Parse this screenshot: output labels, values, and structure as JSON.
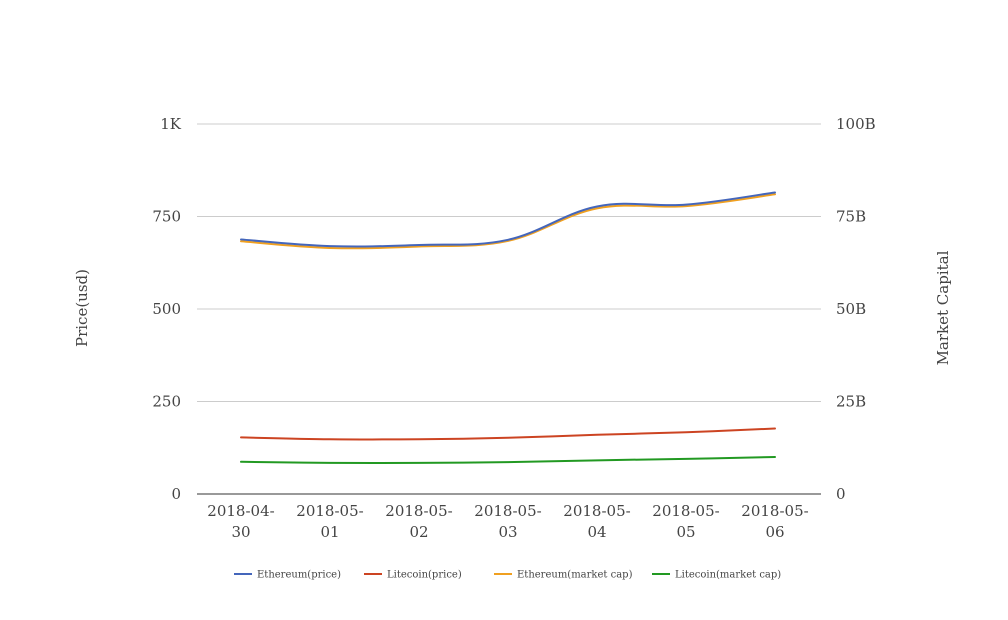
{
  "chart_data": {
    "type": "line",
    "x": [
      "2018-04-30",
      "2018-05-01",
      "2018-05-02",
      "2018-05-03",
      "2018-05-04",
      "2018-05-05",
      "2018-05-06"
    ],
    "x_tick_lines": [
      [
        "2018-04-",
        "30"
      ],
      [
        "2018-05-",
        "01"
      ],
      [
        "2018-05-",
        "02"
      ],
      [
        "2018-05-",
        "03"
      ],
      [
        "2018-05-",
        "04"
      ],
      [
        "2018-05-",
        "05"
      ],
      [
        "2018-05-",
        "06"
      ]
    ],
    "ylabel_left": "Price(usd)",
    "ylabel_right": "Market Capital",
    "ylim_left": [
      0,
      1000
    ],
    "ylim_right": [
      0,
      100000000000
    ],
    "yticks_left": [
      "0",
      "250",
      "500",
      "750",
      "1K"
    ],
    "yticks_right": [
      "0",
      "25B",
      "50B",
      "75B",
      "100B"
    ],
    "grid": true,
    "legend_position": "bottom",
    "series": [
      {
        "name": "Ethereum(price)",
        "axis": "left",
        "color": "#4466bb",
        "values": [
          688,
          670,
          673,
          687,
          777,
          782,
          815
        ]
      },
      {
        "name": "Litecoin(price)",
        "axis": "left",
        "color": "#cc4422",
        "values": [
          153,
          148,
          148,
          152,
          160,
          167,
          177
        ]
      },
      {
        "name": "Ethereum(market cap)",
        "axis": "right",
        "color": "#f0a020",
        "values": [
          68300000000,
          66500000000,
          66900000000,
          68400000000,
          77200000000,
          77800000000,
          81000000000
        ]
      },
      {
        "name": "Litecoin(market cap)",
        "axis": "right",
        "color": "#229922",
        "values": [
          8700000000,
          8400000000,
          8400000000,
          8600000000,
          9100000000,
          9500000000,
          10000000000
        ]
      }
    ]
  }
}
